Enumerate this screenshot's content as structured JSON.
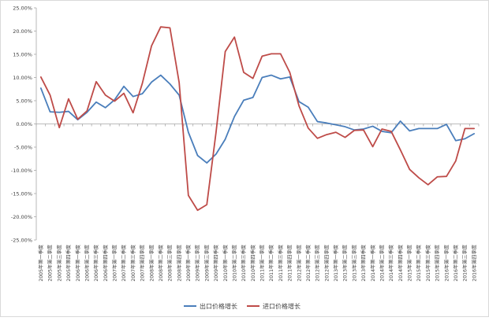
{
  "chart_data": {
    "type": "line",
    "ylim": [
      -25,
      25
    ],
    "ytick_step": 5,
    "grid": false,
    "legend_position": "bottom",
    "categories": [
      "2005年第一季度",
      "2005年第二季度",
      "2005年第三季度",
      "2005年第四季度",
      "2006年第一季度",
      "2006年第二季度",
      "2006年第三季度",
      "2006年第四季度",
      "2007年第一季度",
      "2007年第二季度",
      "2007年第三季度",
      "2007年第四季度",
      "2008年第一季度",
      "2008年第二季度",
      "2008年第三季度",
      "2008年第四季度",
      "2009年第一季度",
      "2009年第二季度",
      "2009年第三季度",
      "2009年第四季度",
      "2010年第一季度",
      "2010年第二季度",
      "2010年第三季度",
      "2010年第四季度",
      "2011年第一季度",
      "2011年第二季度",
      "2011年第三季度",
      "2011年第四季度",
      "2012年第一季度",
      "2012年第二季度",
      "2012年第三季度",
      "2012年第四季度",
      "2013年第一季度",
      "2013年第二季度",
      "2013年第三季度",
      "2013年第四季度",
      "2014年第一季度",
      "2014年第二季度",
      "2014年第三季度",
      "2014年第四季度",
      "2015年第一季度",
      "2015年第二季度",
      "2015年第三季度",
      "2015年第四季度",
      "2016年第一季度",
      "2016年第二季度",
      "2016年第三季度",
      "2016年第四季度"
    ],
    "yticks": [
      "-25.00%",
      "-20.00%",
      "-15.00%",
      "-10.00%",
      "-5.00%",
      "0.00%",
      "5.00%",
      "10.00%",
      "15.00%",
      "20.00%",
      "25.00%"
    ],
    "series": [
      {
        "name": "出口价格增长",
        "color": "#4a7ebb",
        "values": [
          7.7,
          2.6,
          2.5,
          2.7,
          0.9,
          2.5,
          4.7,
          3.5,
          5.2,
          8.1,
          5.9,
          6.5,
          9.0,
          10.5,
          8.6,
          6.2,
          -1.8,
          -6.8,
          -8.4,
          -6.5,
          -3.3,
          1.6,
          5.1,
          5.7,
          10.0,
          10.5,
          9.7,
          10.1,
          4.8,
          3.6,
          0.5,
          0.2,
          -0.2,
          -0.6,
          -1.3,
          -1.1,
          -0.5,
          -1.6,
          -1.9,
          0.6,
          -1.5,
          -1.0,
          -1.0,
          -1.0,
          -0.1,
          -3.6,
          -3.2,
          -2.1
        ]
      },
      {
        "name": "进口价格增长",
        "color": "#be4b48",
        "values": [
          10.1,
          6.2,
          -0.8,
          5.4,
          1.0,
          2.8,
          9.1,
          6.2,
          4.9,
          6.6,
          2.4,
          8.7,
          16.8,
          20.9,
          20.7,
          8.9,
          -15.4,
          -18.6,
          -17.4,
          -1.8,
          15.6,
          18.7,
          11.1,
          9.8,
          14.6,
          15.1,
          15.1,
          11.1,
          3.9,
          -0.9,
          -3.1,
          -2.3,
          -1.8,
          -2.9,
          -1.4,
          -1.3,
          -4.9,
          -1.1,
          -1.6,
          -5.6,
          -9.8,
          -11.6,
          -13.1,
          -11.4,
          -11.3,
          -8.0,
          -1.0,
          -1.0
        ]
      }
    ]
  }
}
